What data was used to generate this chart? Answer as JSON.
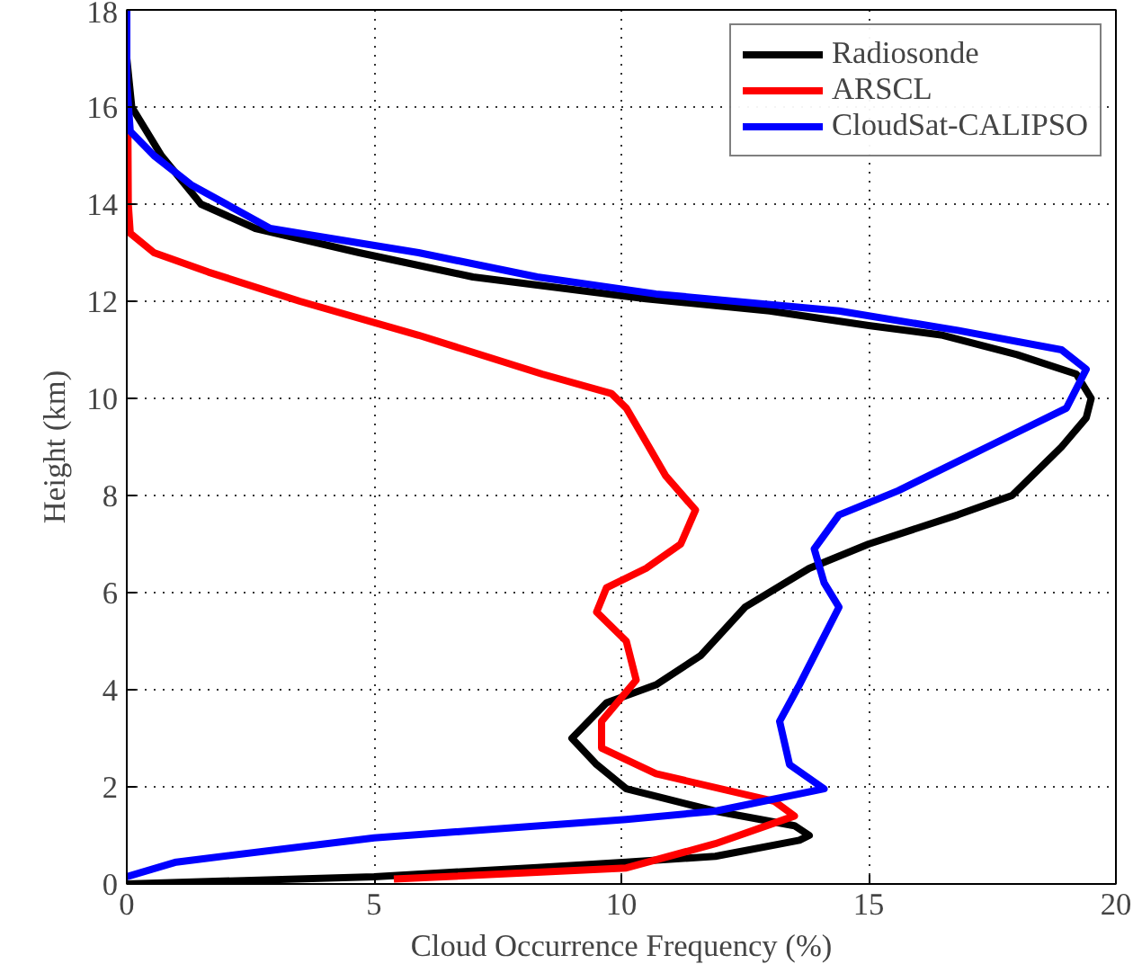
{
  "chart_data": {
    "type": "line",
    "xlabel": "Cloud Occurrence Frequency (%)",
    "ylabel": "Height (km)",
    "xlim": [
      0,
      20
    ],
    "ylim": [
      0,
      18
    ],
    "xticks": [
      0,
      5,
      10,
      15,
      20
    ],
    "yticks": [
      0,
      2,
      4,
      6,
      8,
      10,
      12,
      14,
      16,
      18
    ],
    "grid": true,
    "legend": "top right",
    "line_style": "solid",
    "series": [
      {
        "name": "Radiosonde",
        "color": "#000000",
        "x": [
          0,
          5,
          8.3,
          10.1,
          11.9,
          13.6,
          13.8,
          13.5,
          11.9,
          10.1,
          9.5,
          9.0,
          9.7,
          10.7,
          11.6,
          12.5,
          13.8,
          15,
          16.8,
          17.9,
          18.9,
          19.4,
          19.5,
          19.2,
          18,
          16.5,
          15,
          13,
          10.5,
          7,
          4.7,
          2.6,
          1.5,
          0.7,
          0.1,
          0,
          0
        ],
        "values": [
          0,
          0.15,
          0.34,
          0.45,
          0.57,
          0.9,
          1.0,
          1.2,
          1.5,
          1.96,
          2.46,
          3.0,
          3.73,
          4.1,
          4.7,
          5.7,
          6.5,
          7.0,
          7.6,
          8,
          9,
          9.6,
          10,
          10.5,
          10.9,
          11.3,
          11.5,
          11.8,
          12.05,
          12.5,
          13,
          13.5,
          14,
          15,
          16,
          17,
          18
        ]
      },
      {
        "name": "ARSCL",
        "color": "#ff0000",
        "x": [
          5.4,
          10.1,
          11.9,
          13.5,
          13.1,
          10.7,
          9.6,
          9.6,
          10.3,
          10.1,
          9.5,
          9.7,
          10.5,
          11.2,
          11.5,
          10.9,
          10.5,
          10.1,
          9.8,
          8.4,
          5.9,
          3.5,
          1.65,
          0.55,
          0.07,
          0.03,
          0.02
        ],
        "values": [
          0.1,
          0.33,
          0.83,
          1.4,
          1.7,
          2.27,
          2.8,
          3.35,
          4.2,
          5.0,
          5.6,
          6.1,
          6.5,
          7.0,
          7.7,
          8.4,
          9.1,
          9.8,
          10.1,
          10.5,
          11.3,
          12.0,
          12.6,
          13.0,
          13.4,
          14,
          16
        ]
      },
      {
        "name": "CloudSat-CALIPSO",
        "color": "#0000ff",
        "x": [
          0,
          1.0,
          5.0,
          10.1,
          11.9,
          14.1,
          13.4,
          13.2,
          13.6,
          14.0,
          14.4,
          14.1,
          13.9,
          14.4,
          15.6,
          17.4,
          19.0,
          19.4,
          18.9,
          16.8,
          14.4,
          10.7,
          8.3,
          5.9,
          2.9,
          1.3,
          0.55,
          0.07,
          0,
          0,
          0
        ],
        "values": [
          0.15,
          0.45,
          0.95,
          1.33,
          1.5,
          1.96,
          2.46,
          3.35,
          4.1,
          4.9,
          5.7,
          6.2,
          6.9,
          7.6,
          8.1,
          9.0,
          9.8,
          10.6,
          11.0,
          11.4,
          11.8,
          12.15,
          12.5,
          13.0,
          13.5,
          14.4,
          15.0,
          15.5,
          16.5,
          17,
          18
        ]
      }
    ]
  }
}
